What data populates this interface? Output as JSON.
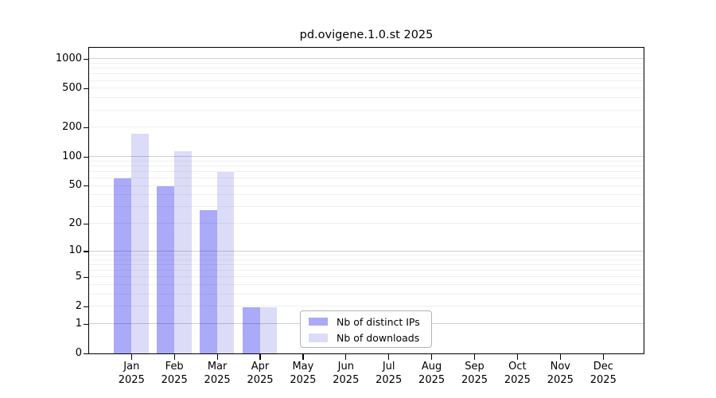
{
  "chart_data": {
    "type": "bar",
    "title": "pd.ovigene.1.0.st 2025",
    "year_line": "2025",
    "month_names": [
      "Jan",
      "Feb",
      "Mar",
      "Apr",
      "May",
      "Jun",
      "Jul",
      "Aug",
      "Sep",
      "Oct",
      "Nov",
      "Dec"
    ],
    "categories": [
      "Jan 2025",
      "Feb 2025",
      "Mar 2025",
      "Apr 2025",
      "May 2025",
      "Jun 2025",
      "Jul 2025",
      "Aug 2025",
      "Sep 2025",
      "Oct 2025",
      "Nov 2025",
      "Dec 2025"
    ],
    "series": [
      {
        "name": "Nb of distinct IPs",
        "color": "#aaaaf8",
        "values": [
          60,
          50,
          28,
          2,
          0,
          0,
          0,
          0,
          0,
          0,
          0,
          0
        ]
      },
      {
        "name": "Nb of downloads",
        "color": "#dcdcf8",
        "values": [
          173,
          114,
          70,
          2,
          0,
          0,
          0,
          0,
          0,
          0,
          0,
          0
        ]
      }
    ],
    "yscale": "log1p",
    "ylim": [
      0,
      1286
    ],
    "yticks": [
      0,
      1,
      2,
      5,
      10,
      20,
      50,
      100,
      200,
      500,
      1000
    ],
    "grid": {
      "on": true,
      "major_ticks": [
        1,
        10,
        100,
        1000
      ],
      "minor_multiples": [
        2,
        3,
        4,
        5,
        6,
        7,
        8,
        9
      ],
      "minor_decades": [
        1,
        10,
        100
      ]
    },
    "legend_position": "inside-bottom-center"
  }
}
